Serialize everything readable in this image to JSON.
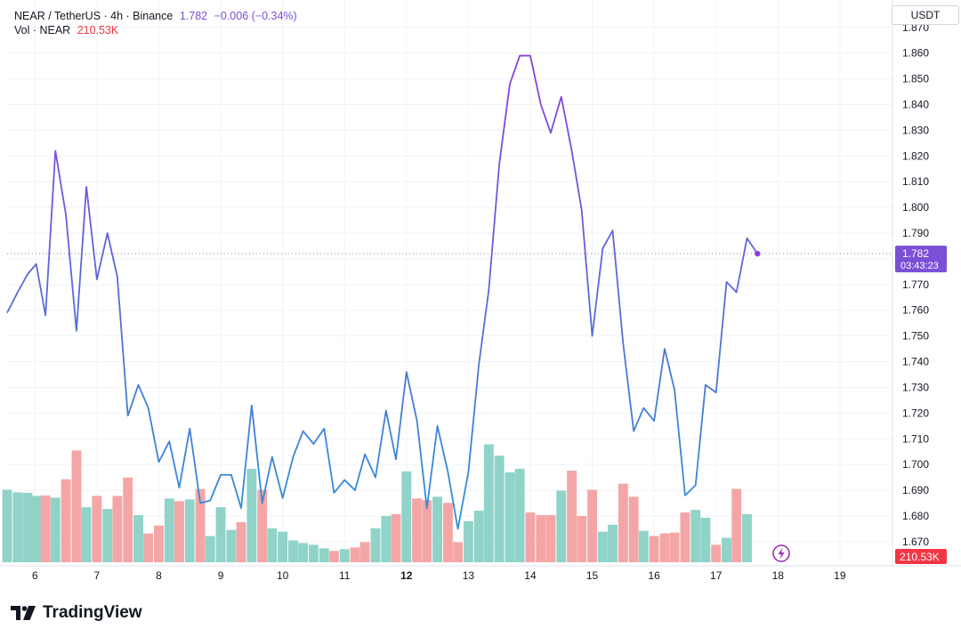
{
  "legend": {
    "symbol": "NEAR / TetherUS · 4h · Binance",
    "last": "1.782",
    "change": "−0.006 (−0.34%)",
    "vol_label": "Vol · NEAR",
    "vol_value": "210.53K"
  },
  "currency": "USDT",
  "price_tag": {
    "price": "1.782",
    "countdown": "03:43:23"
  },
  "volume_tag": "210.53K",
  "branding": "TradingView",
  "colors": {
    "line_purple": "#8a3fe0",
    "line_blue": "#2f8fd8",
    "vol_up": "#8fd3c9",
    "vol_down": "#f4a6a6",
    "tag_bg": "#7b4fd6",
    "vol_tag_bg": "#f23645"
  },
  "chart_data": {
    "type": "line",
    "title": "NEAR / TetherUS · 4h · Binance",
    "ylabel": "USDT",
    "ylim": [
      1.662,
      1.872
    ],
    "y_ticks": [
      "1.670",
      "1.680",
      "1.690",
      "1.700",
      "1.710",
      "1.720",
      "1.730",
      "1.740",
      "1.750",
      "1.760",
      "1.770",
      "1.780",
      "1.790",
      "1.800",
      "1.810",
      "1.820",
      "1.830",
      "1.840",
      "1.850",
      "1.860",
      "1.870"
    ],
    "x_ticks": [
      {
        "label": "6",
        "x": 6.0
      },
      {
        "label": "7",
        "x": 7.0
      },
      {
        "label": "8",
        "x": 8.0
      },
      {
        "label": "9",
        "x": 9.0
      },
      {
        "label": "10",
        "x": 10.0
      },
      {
        "label": "11",
        "x": 11.0
      },
      {
        "label": "12",
        "x": 12.0,
        "bold": true
      },
      {
        "label": "13",
        "x": 13.0
      },
      {
        "label": "14",
        "x": 14.0
      },
      {
        "label": "15",
        "x": 15.0
      },
      {
        "label": "16",
        "x": 16.0
      },
      {
        "label": "17",
        "x": 17.0
      },
      {
        "label": "18",
        "x": 18.0
      },
      {
        "label": "19",
        "x": 19.0
      }
    ],
    "xlim": [
      5.55,
      19.85
    ],
    "series": [
      {
        "name": "NEAR/USDT close",
        "x": [
          5.55,
          5.72,
          5.88,
          6.02,
          6.17,
          6.33,
          6.5,
          6.67,
          6.83,
          7.0,
          7.17,
          7.33,
          7.5,
          7.67,
          7.83,
          8.0,
          8.17,
          8.33,
          8.5,
          8.67,
          8.83,
          9.0,
          9.17,
          9.33,
          9.5,
          9.67,
          9.83,
          10.0,
          10.17,
          10.33,
          10.5,
          10.67,
          10.83,
          11.0,
          11.17,
          11.33,
          11.5,
          11.67,
          11.83,
          12.0,
          12.17,
          12.33,
          12.5,
          12.67,
          12.83,
          13.0,
          13.17,
          13.33,
          13.5,
          13.67,
          13.83,
          14.0,
          14.17,
          14.33,
          14.5,
          14.67,
          14.83,
          15.0,
          15.17,
          15.33,
          15.5,
          15.67,
          15.83,
          16.0,
          16.17,
          16.33,
          16.5,
          16.67,
          16.83,
          17.0,
          17.17,
          17.33,
          17.5
        ],
        "values": [
          1.759,
          1.767,
          1.774,
          1.778,
          1.758,
          1.822,
          1.797,
          1.752,
          1.808,
          1.772,
          1.79,
          1.773,
          1.719,
          1.731,
          1.722,
          1.701,
          1.709,
          1.691,
          1.714,
          1.685,
          1.686,
          1.696,
          1.696,
          1.683,
          1.723,
          1.685,
          1.703,
          1.687,
          1.703,
          1.713,
          1.708,
          1.714,
          1.689,
          1.694,
          1.69,
          1.704,
          1.695,
          1.721,
          1.702,
          1.736,
          1.717,
          1.683,
          1.715,
          1.697,
          1.675,
          1.697,
          1.739,
          1.768,
          1.817,
          1.848,
          1.859,
          1.859,
          1.84,
          1.829,
          1.843,
          1.822,
          1.799,
          1.75,
          1.784,
          1.791,
          1.747,
          1.713,
          1.722,
          1.717,
          1.745,
          1.729,
          1.688,
          1.692,
          1.731,
          1.728,
          1.771,
          1.767,
          1.788
        ],
        "last_point": {
          "x": 17.67,
          "y": 1.782
        }
      },
      {
        "name": "Volume",
        "type": "bar",
        "ylim": [
          0,
          1650
        ],
        "values": [
          830,
          800,
          795,
          760,
          765,
          740,
          950,
          1280,
          630,
          760,
          610,
          760,
          970,
          540,
          330,
          420,
          730,
          700,
          720,
          840,
          300,
          630,
          370,
          460,
          1070,
          830,
          390,
          350,
          250,
          220,
          200,
          160,
          130,
          150,
          170,
          230,
          390,
          530,
          550,
          1040,
          730,
          710,
          750,
          680,
          230,
          470,
          590,
          1350,
          1220,
          1030,
          1070,
          570,
          540,
          540,
          820,
          1050,
          530,
          830,
          350,
          430,
          900,
          750,
          360,
          300,
          330,
          340,
          570,
          600,
          510,
          200,
          280,
          840,
          550
        ],
        "dir": [
          "u",
          "u",
          "u",
          "u",
          "d",
          "u",
          "d",
          "d",
          "u",
          "d",
          "u",
          "d",
          "d",
          "u",
          "d",
          "d",
          "u",
          "d",
          "u",
          "d",
          "u",
          "u",
          "u",
          "d",
          "u",
          "d",
          "u",
          "u",
          "u",
          "u",
          "u",
          "u",
          "d",
          "u",
          "d",
          "d",
          "u",
          "u",
          "d",
          "u",
          "d",
          "d",
          "u",
          "d",
          "d",
          "u",
          "u",
          "u",
          "u",
          "u",
          "u",
          "d",
          "d",
          "d",
          "u",
          "d",
          "d",
          "d",
          "u",
          "u",
          "d",
          "d",
          "u",
          "d",
          "d",
          "d",
          "d",
          "u",
          "u",
          "d",
          "u",
          "d",
          "u"
        ]
      }
    ]
  }
}
